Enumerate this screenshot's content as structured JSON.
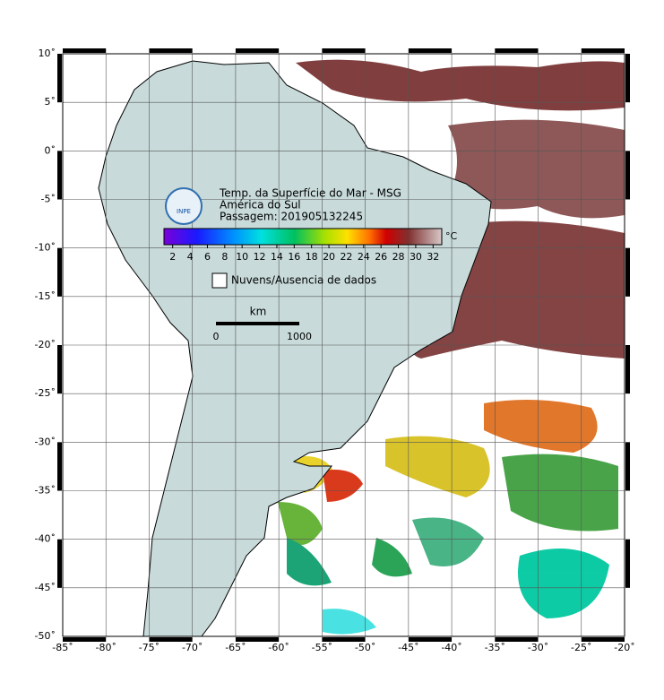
{
  "header": {
    "title": "Temp. da Superfície do Mar - MSG",
    "region": "América do Sul",
    "pass": "Passagem: 201905132245",
    "logo": "INPE"
  },
  "map": {
    "lonlim": [
      -85,
      -20
    ],
    "latlim": [
      -50,
      10
    ],
    "lon_ticks": [
      {
        "value": -85,
        "label": "-85˚"
      },
      {
        "value": -80,
        "label": "-80˚"
      },
      {
        "value": -75,
        "label": "-75˚"
      },
      {
        "value": -70,
        "label": "-70˚"
      },
      {
        "value": -65,
        "label": "-65˚"
      },
      {
        "value": -60,
        "label": "-60˚"
      },
      {
        "value": -55,
        "label": "-55˚"
      },
      {
        "value": -50,
        "label": "-50˚"
      },
      {
        "value": -45,
        "label": "-45˚"
      },
      {
        "value": -40,
        "label": "-40˚"
      },
      {
        "value": -35,
        "label": "-35˚"
      },
      {
        "value": -30,
        "label": "-30˚"
      },
      {
        "value": -25,
        "label": "-25˚"
      },
      {
        "value": -20,
        "label": "-20˚"
      }
    ],
    "lat_ticks": [
      {
        "value": 10,
        "label": "10˚"
      },
      {
        "value": 5,
        "label": "5˚"
      },
      {
        "value": 0,
        "label": "0˚"
      },
      {
        "value": -5,
        "label": "-5˚"
      },
      {
        "value": -10,
        "label": "-10˚"
      },
      {
        "value": -15,
        "label": "-15˚"
      },
      {
        "value": -20,
        "label": "-20˚"
      },
      {
        "value": -25,
        "label": "-25˚"
      },
      {
        "value": -30,
        "label": "-30˚"
      },
      {
        "value": -35,
        "label": "-35˚"
      },
      {
        "value": -40,
        "label": "-40˚"
      },
      {
        "value": -45,
        "label": "-45˚"
      },
      {
        "value": -50,
        "label": "-50˚"
      }
    ]
  },
  "colorbar": {
    "range": [
      1,
      33
    ],
    "ticks": [
      2,
      4,
      6,
      8,
      10,
      12,
      14,
      16,
      18,
      20,
      22,
      24,
      26,
      28,
      30,
      32
    ],
    "unit": "°C"
  },
  "legend": {
    "no_data": "Nuvens/Ausencia de dados"
  },
  "scale_bar": {
    "unit": "km",
    "ticks": [
      0,
      1000
    ]
  }
}
